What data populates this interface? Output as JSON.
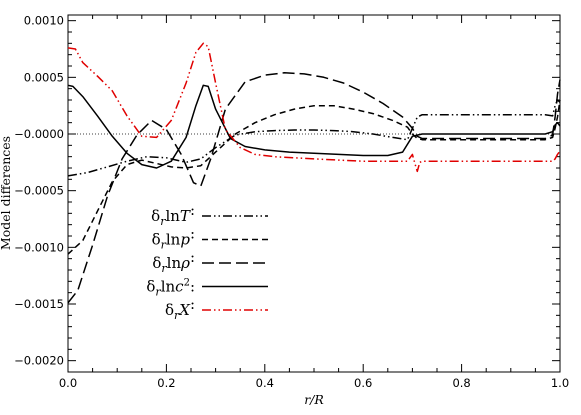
{
  "chart_data": {
    "type": "line",
    "xlabel": "r/R",
    "ylabel": "Model differences",
    "xlim": [
      0.0,
      1.0
    ],
    "ylim": [
      -0.0021,
      0.00105
    ],
    "x_ticks": [
      0.0,
      0.2,
      0.4,
      0.6,
      0.8,
      1.0
    ],
    "x_tick_labels": [
      "0.0",
      "0.2",
      "0.4",
      "0.6",
      "0.8",
      "1.0"
    ],
    "y_ticks": [
      -0.002,
      -0.0015,
      -0.001,
      -0.0005,
      0.0,
      0.0005,
      0.001
    ],
    "y_tick_labels": [
      "−0.0020",
      "−0.0015",
      "−0.0010",
      "−0.0005",
      "−0.0000",
      "0.0005",
      "0.0010"
    ],
    "zero_line": true,
    "grid": false,
    "legend_position": "lower-left",
    "colors": {
      "black": "#000000",
      "red": "#e00000"
    },
    "series": [
      {
        "name": "δ_r ln T",
        "dash": "dashdotdot",
        "color": "#000000",
        "x": [
          0.0,
          0.04,
          0.08,
          0.12,
          0.16,
          0.2,
          0.24,
          0.27,
          0.3,
          0.34,
          0.38,
          0.42,
          0.46,
          0.5,
          0.54,
          0.58,
          0.62,
          0.66,
          0.69,
          0.7,
          0.71,
          0.72,
          0.8,
          0.9,
          0.97,
          0.985,
          0.99,
          0.995,
          1.0
        ],
        "y": [
          -0.00037,
          -0.00034,
          -0.00029,
          -0.00024,
          -0.0002,
          -0.00021,
          -0.00025,
          -0.00022,
          -0.00012,
          -1e-05,
          2e-05,
          3e-05,
          3.5e-05,
          3.5e-05,
          3e-05,
          2e-05,
          0.0,
          -3e-05,
          -5e-05,
          5e-05,
          0.00015,
          0.00017,
          0.00017,
          0.00017,
          0.00017,
          0.00016,
          0.00025,
          0.0003,
          0.00028
        ]
      },
      {
        "name": "δ_r ln p",
        "dash": "shortdash",
        "color": "#000000",
        "x": [
          0.0,
          0.03,
          0.06,
          0.09,
          0.12,
          0.15,
          0.18,
          0.21,
          0.24,
          0.27,
          0.3,
          0.34,
          0.38,
          0.42,
          0.46,
          0.5,
          0.54,
          0.58,
          0.62,
          0.66,
          0.69,
          0.7,
          0.71,
          0.72,
          0.8,
          0.9,
          0.97,
          0.985,
          0.99,
          0.995,
          1.0
        ],
        "y": [
          -0.00106,
          -0.00094,
          -0.00068,
          -0.00042,
          -0.00027,
          -0.00023,
          -0.00026,
          -0.00029,
          -0.0003,
          -0.00028,
          -0.00016,
          0.0,
          0.0001,
          0.00017,
          0.00022,
          0.00025,
          0.00025,
          0.00022,
          0.00018,
          0.00012,
          6e-05,
          0.0,
          -4e-05,
          -5e-05,
          -5e-05,
          -5e-05,
          -5e-05,
          -3e-05,
          5e-05,
          0.00015,
          0.0003
        ]
      },
      {
        "name": "δ_r ln ρ",
        "dash": "longdash",
        "color": "#000000",
        "x": [
          0.0,
          0.02,
          0.05,
          0.08,
          0.11,
          0.14,
          0.17,
          0.2,
          0.23,
          0.255,
          0.27,
          0.29,
          0.32,
          0.36,
          0.4,
          0.44,
          0.48,
          0.52,
          0.56,
          0.6,
          0.64,
          0.68,
          0.7,
          0.71,
          0.72,
          0.8,
          0.9,
          0.97,
          0.985,
          0.99,
          0.995,
          1.0
        ],
        "y": [
          -0.00149,
          -0.00138,
          -0.00098,
          -0.00055,
          -0.00022,
          -1e-05,
          0.00012,
          4e-05,
          -0.00018,
          -0.00043,
          -0.00046,
          -0.00022,
          0.00022,
          0.00046,
          0.00052,
          0.00054,
          0.00053,
          0.0005,
          0.00045,
          0.00037,
          0.00027,
          0.00015,
          5e-05,
          -2e-05,
          -4e-05,
          -4e-05,
          -4e-05,
          -4e-05,
          -1e-05,
          0.00015,
          0.00035,
          0.00048
        ]
      },
      {
        "name": "δ_r ln c²",
        "dash": "solid",
        "color": "#000000",
        "x": [
          0.0,
          0.01,
          0.03,
          0.06,
          0.09,
          0.12,
          0.15,
          0.18,
          0.21,
          0.24,
          0.26,
          0.275,
          0.285,
          0.3,
          0.33,
          0.36,
          0.4,
          0.45,
          0.5,
          0.55,
          0.6,
          0.65,
          0.68,
          0.7,
          0.71,
          0.72,
          0.8,
          0.9,
          0.97,
          0.985,
          0.99,
          0.995,
          1.0
        ],
        "y": [
          0.00043,
          0.00042,
          0.00033,
          0.00016,
          -2e-05,
          -0.00017,
          -0.00027,
          -0.0003,
          -0.00024,
          -3e-05,
          0.00025,
          0.00043,
          0.00042,
          0.00022,
          -4e-05,
          -0.00011,
          -0.00014,
          -0.00016,
          -0.00017,
          -0.00018,
          -0.00019,
          -0.00019,
          -0.00016,
          -2e-05,
          -1e-05,
          0.0,
          0.0,
          0.0,
          0.0,
          2e-05,
          8e-05,
          0.0001,
          7e-05
        ]
      },
      {
        "name": "δ_r X",
        "dash": "dashdotdot",
        "color": "#e00000",
        "x": [
          0.0,
          0.015,
          0.03,
          0.06,
          0.09,
          0.12,
          0.15,
          0.18,
          0.21,
          0.24,
          0.26,
          0.275,
          0.285,
          0.3,
          0.32,
          0.35,
          0.38,
          0.42,
          0.46,
          0.5,
          0.55,
          0.6,
          0.65,
          0.69,
          0.7,
          0.705,
          0.71,
          0.715,
          0.72,
          0.8,
          0.9,
          0.97,
          0.985,
          0.99,
          0.995,
          1.0
        ],
        "y": [
          0.00076,
          0.00075,
          0.00063,
          0.00051,
          0.00038,
          0.00016,
          -2e-05,
          -3e-05,
          0.00012,
          0.00045,
          0.00072,
          0.0008,
          0.00077,
          0.00045,
          4e-05,
          -0.00012,
          -0.00018,
          -0.0002,
          -0.00021,
          -0.00022,
          -0.00023,
          -0.00024,
          -0.00024,
          -0.00024,
          -0.00018,
          -0.00026,
          -0.00033,
          -0.00025,
          -0.00024,
          -0.00024,
          -0.00024,
          -0.00024,
          -0.00024,
          -0.00022,
          -0.00018,
          -0.00015
        ]
      }
    ]
  },
  "legend": {
    "items": [
      {
        "pre": "δ",
        "sub": "r",
        "mid": "ln",
        "var": "T",
        "sup": "",
        "post": ":"
      },
      {
        "pre": "δ",
        "sub": "r",
        "mid": "ln",
        "var": "p",
        "sup": "",
        "post": ":"
      },
      {
        "pre": "δ",
        "sub": "r",
        "mid": "ln",
        "var": "ρ",
        "sup": "",
        "post": ":"
      },
      {
        "pre": "δ",
        "sub": "r",
        "mid": "ln",
        "var": "c",
        "sup": "2",
        "post": ":"
      },
      {
        "pre": "δ",
        "sub": "r",
        "mid": "",
        "var": "X",
        "sup": "",
        "post": ":"
      }
    ]
  }
}
